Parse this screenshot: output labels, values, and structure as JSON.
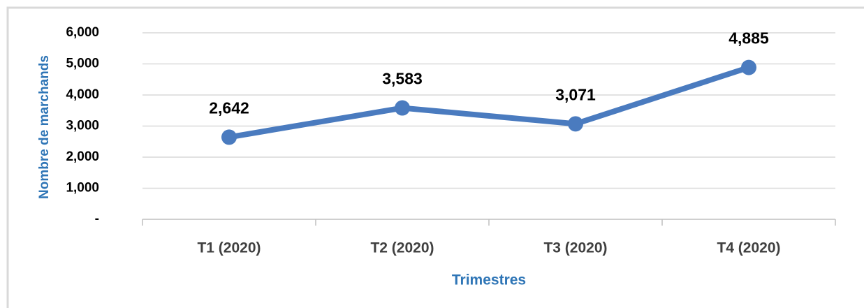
{
  "chart_data": {
    "type": "line",
    "x_label": "Trimestres",
    "y_label": "Nombre de marchands",
    "categories": [
      "T1 (2020)",
      "T2 (2020)",
      "T3 (2020)",
      "T4 (2020)"
    ],
    "values": [
      2642,
      3583,
      3071,
      4885
    ],
    "value_labels": [
      "2,642",
      "3,583",
      "3,071",
      "4,885"
    ],
    "color": "#4a7bbf",
    "ylim": [
      0,
      6000
    ],
    "yticks": [
      {
        "value": 0,
        "label": "-"
      },
      {
        "value": 1000,
        "label": "1,000"
      },
      {
        "value": 2000,
        "label": "2,000"
      },
      {
        "value": 3000,
        "label": "3,000"
      },
      {
        "value": 4000,
        "label": "4,000"
      },
      {
        "value": 5000,
        "label": "5,000"
      },
      {
        "value": 6000,
        "label": "6,000"
      }
    ],
    "grid": true
  }
}
